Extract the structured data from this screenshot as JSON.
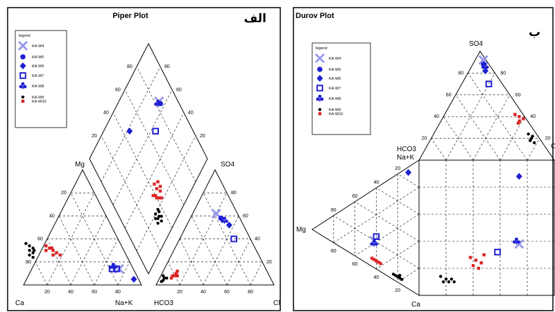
{
  "chart_data": [
    {
      "type": "scatter",
      "diagram": "piper",
      "title": "Piper Plot",
      "panel_tag": "الف",
      "legend_title": "legend",
      "legend_position": "top-left",
      "corner_labels": {
        "ca": "Ca",
        "mg": "Mg",
        "nak": "Na+K",
        "hco3": "HCO3",
        "so4": "SO4",
        "cl": "Cl"
      },
      "ticks": [
        "20",
        "40",
        "60",
        "80"
      ],
      "series": [
        {
          "name": "KA-W4",
          "marker": "x",
          "color": "#9999ee",
          "cation": [
            [
              12,
              14
            ]
          ],
          "anion": [
            [
              18,
              62
            ]
          ],
          "diamond": [
            [
              66,
              84
            ]
          ]
        },
        {
          "name": "KA-W5",
          "marker": "circle",
          "color": "#1f1fd2",
          "cation": [],
          "anion": [
            [
              16,
              58
            ]
          ],
          "diamond": [
            [
              64,
              84
            ]
          ]
        },
        {
          "name": "KA-W6",
          "marker": "diamond",
          "color": "#1f1fd2",
          "cation": [
            [
              4,
              5
            ]
          ],
          "anion": [
            [
              12,
              52
            ]
          ],
          "diamond": [
            [
              78,
              46
            ]
          ]
        },
        {
          "name": "KA-W7",
          "marker": "square",
          "color": "#1f1fd2",
          "cation": [
            [
              14,
              14
            ],
            [
              18,
              14
            ]
          ],
          "anion": [
            [
              14,
              40
            ]
          ],
          "diamond": [
            [
              56,
              68
            ]
          ]
        },
        {
          "name": "KA-W8",
          "marker": "club",
          "color": "#1f1fd2",
          "cation": [
            [
              16,
              16
            ]
          ],
          "anion": [
            [
              14,
              56
            ]
          ],
          "diamond": [
            [
              66,
              82
            ]
          ]
        },
        {
          "name": "KA-W9",
          "marker": "dot",
          "color": "#000000",
          "cation": [
            [
              78,
              28
            ],
            [
              80,
              30
            ],
            [
              78,
              34
            ],
            [
              76,
              32
            ],
            [
              82,
              26
            ],
            [
              80,
              24
            ],
            [
              76,
              30
            ],
            [
              80,
              36
            ]
          ],
          "anion": [
            [
              92,
              4
            ],
            [
              90,
              6
            ],
            [
              94,
              3
            ],
            [
              88,
              6
            ],
            [
              90,
              8
            ]
          ],
          "diamond": [
            [
              14,
              30
            ],
            [
              16,
              32
            ],
            [
              18,
              30
            ],
            [
              16,
              34
            ],
            [
              18,
              36
            ],
            [
              20,
              32
            ],
            [
              12,
              34
            ],
            [
              14,
              36
            ],
            [
              20,
              36
            ]
          ]
        },
        {
          "name": "KA-W10",
          "marker": "dot-red",
          "color": "#dd2222",
          "cation": [
            [
              62,
              32
            ],
            [
              60,
              30
            ],
            [
              58,
              28
            ],
            [
              56,
              26
            ],
            [
              62,
              26
            ],
            [
              64,
              34
            ],
            [
              66,
              30
            ],
            [
              60,
              32
            ]
          ],
          "anion": [
            [
              80,
              8
            ],
            [
              78,
              10
            ],
            [
              76,
              12
            ],
            [
              82,
              8
            ],
            [
              84,
              6
            ],
            [
              78,
              8
            ]
          ],
          "diamond": [
            [
              24,
              42
            ],
            [
              26,
              46
            ],
            [
              28,
              40
            ],
            [
              30,
              44
            ],
            [
              32,
              48
            ],
            [
              30,
              38
            ],
            [
              28,
              48
            ],
            [
              26,
              40
            ],
            [
              34,
              44
            ],
            [
              22,
              44
            ]
          ]
        }
      ]
    },
    {
      "type": "scatter",
      "diagram": "durov",
      "title": "Durov Plot",
      "panel_tag": "ب",
      "legend_title": "legend",
      "legend_position": "top-left",
      "corner_labels": {
        "so4": "SO4",
        "hco3_nak": "HCO3\nNa+K",
        "mg": "Mg",
        "ca": "Ca",
        "cl": "Cl"
      },
      "ticks": [
        "20",
        "40",
        "60",
        "80"
      ],
      "series": [
        {
          "name": "KA-W4",
          "marker": "x",
          "color": "#9999ee",
          "anion": [
            [
              92,
              2,
              6
            ]
          ],
          "cation": [
            [
              38,
              42,
              20
            ]
          ],
          "square": [
            [
              74,
              38
            ]
          ]
        },
        {
          "name": "KA-W5",
          "marker": "circle",
          "color": "#1f1fd2",
          "anion": [
            [
              88,
              4,
              8
            ]
          ],
          "cation": [],
          "square": []
        },
        {
          "name": "KA-W6",
          "marker": "diamond",
          "color": "#1f1fd2",
          "anion": [
            [
              82,
              6,
              12
            ]
          ],
          "cation": [
            [
              4,
              10,
              86
            ]
          ],
          "square": [
            [
              74,
              88
            ]
          ]
        },
        {
          "name": "KA-W7",
          "marker": "square",
          "color": "#1f1fd2",
          "anion": [
            [
              70,
              10,
              20
            ]
          ],
          "cation": [
            [
              36,
              40,
              24
            ]
          ],
          "square": [
            [
              58,
              32
            ]
          ]
        },
        {
          "name": "KA-W8",
          "marker": "club",
          "color": "#1f1fd2",
          "anion": [
            [
              86,
              4,
              10
            ]
          ],
          "cation": [
            [
              40,
              42,
              18
            ]
          ],
          "square": [
            [
              72,
              40
            ]
          ]
        },
        {
          "name": "KA-W9",
          "marker": "dot",
          "color": "#000000",
          "anion": [
            [
              20,
              6,
              74
            ],
            [
              18,
              8,
              74
            ],
            [
              22,
              4,
              74
            ],
            [
              16,
              6,
              78
            ],
            [
              24,
              6,
              70
            ]
          ],
          "cation": [
            [
              76,
              20,
              4
            ],
            [
              74,
              22,
              4
            ],
            [
              78,
              18,
              4
            ],
            [
              72,
              24,
              4
            ],
            [
              80,
              16,
              4
            ],
            [
              76,
              18,
              6
            ]
          ],
          "square": [
            [
              18,
              10
            ],
            [
              20,
              12
            ],
            [
              22,
              10
            ],
            [
              24,
              12
            ],
            [
              16,
              14
            ],
            [
              26,
              10
            ]
          ]
        },
        {
          "name": "KA-W10",
          "marker": "dot-red",
          "color": "#dd2222",
          "anion": [
            [
              40,
              4,
              56
            ],
            [
              36,
              6,
              58
            ],
            [
              38,
              2,
              60
            ],
            [
              34,
              8,
              58
            ],
            [
              42,
              6,
              52
            ]
          ],
          "cation": [
            [
              54,
              40,
              6
            ],
            [
              56,
              38,
              6
            ],
            [
              52,
              42,
              6
            ],
            [
              58,
              36,
              6
            ],
            [
              50,
              44,
              6
            ]
          ],
          "square": [
            [
              40,
              22
            ],
            [
              42,
              26
            ],
            [
              44,
              20
            ],
            [
              46,
              24
            ],
            [
              38,
              28
            ],
            [
              48,
              30
            ]
          ]
        }
      ]
    }
  ]
}
